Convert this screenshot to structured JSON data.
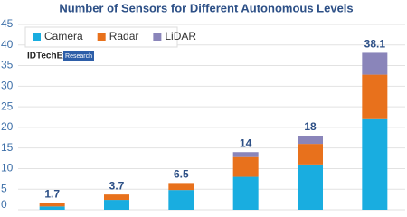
{
  "chart_data": {
    "type": "bar",
    "stacked": true,
    "title": "Number of Sensors for Different Autonomous Levels",
    "logo": "IDTechEx",
    "logo_subtitle": "Research",
    "categories": [
      null,
      null,
      null,
      null,
      null,
      null
    ],
    "series": [
      {
        "name": "Camera",
        "color": "#19ade0",
        "values": [
          0.8,
          2.4,
          4.8,
          8,
          11,
          22
        ]
      },
      {
        "name": "Radar",
        "color": "#e8711c",
        "values": [
          0.9,
          1.3,
          1.7,
          4.8,
          5,
          10.8
        ]
      },
      {
        "name": "LiDAR",
        "color": "#8a85ba",
        "values": [
          0,
          0,
          0,
          1.2,
          2,
          5.3
        ]
      }
    ],
    "totals": [
      1.7,
      3.7,
      6.5,
      14,
      18,
      38.1
    ],
    "ylim": [
      0,
      45
    ],
    "yticks": [
      0,
      5,
      10,
      15,
      20,
      25,
      30,
      35,
      40,
      45
    ],
    "grid": true
  }
}
